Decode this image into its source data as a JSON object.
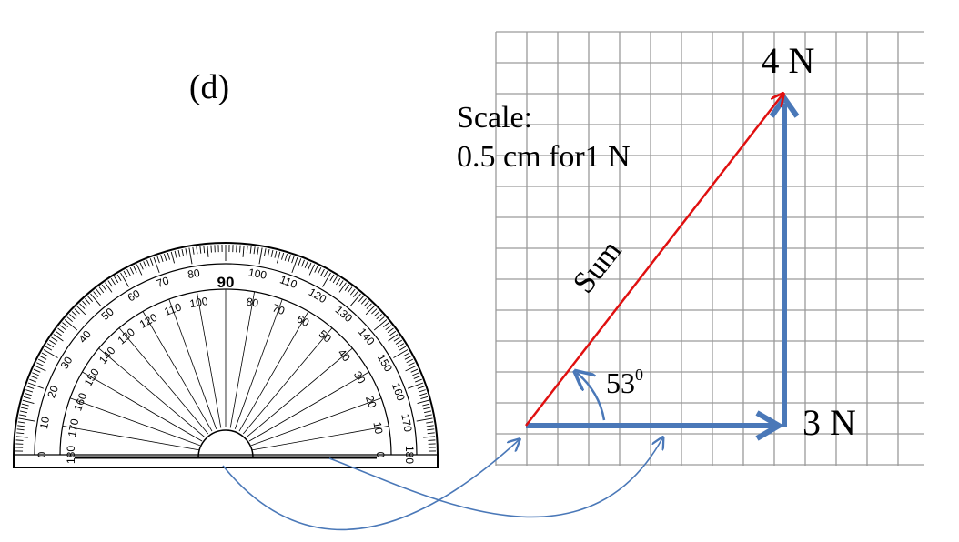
{
  "panel_label": "(d)",
  "scale": {
    "line1": "Scale:",
    "line2": "0.5 cm for1 N"
  },
  "vectors": {
    "horizontal": {
      "label": "3 N",
      "color": "#4a78b8"
    },
    "vertical": {
      "label": "4 N",
      "color": "#4a78b8"
    },
    "resultant": {
      "label": "Sum",
      "color": "#e01010"
    }
  },
  "angle": {
    "value": "53",
    "unit_superscript": "0"
  },
  "protractor": {
    "center_label": "90",
    "outer_ticks": [
      "0",
      "10",
      "20",
      "30",
      "40",
      "50",
      "60",
      "70",
      "80",
      "100",
      "110",
      "120",
      "130",
      "140",
      "150",
      "160",
      "170",
      "180"
    ],
    "inner_ticks": [
      "180",
      "170",
      "160",
      "150",
      "140",
      "130",
      "120",
      "110",
      "100",
      "80",
      "70",
      "60",
      "50",
      "40",
      "30",
      "20",
      "10",
      "0"
    ]
  },
  "colors": {
    "grid": "#9a9a9a",
    "arrow_blue": "#4a78b8",
    "sum_red": "#e01010",
    "indicator": "#4a78b8"
  }
}
